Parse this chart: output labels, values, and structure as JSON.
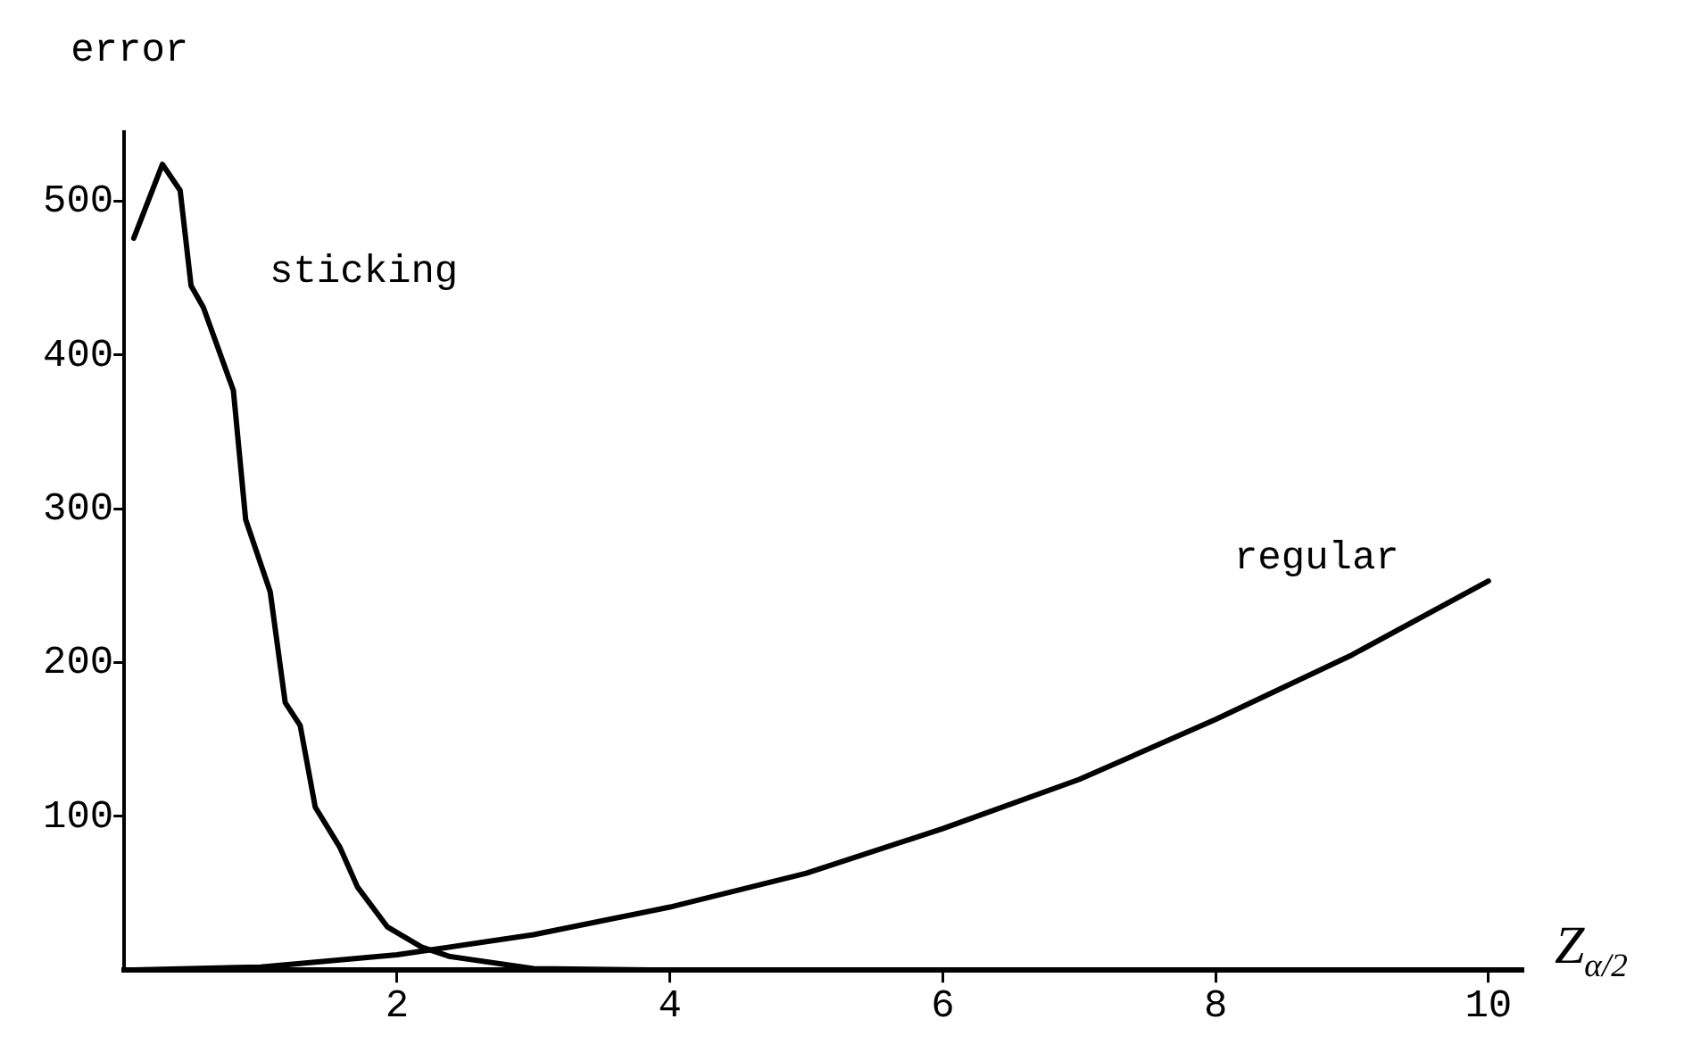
{
  "chart_data": {
    "type": "line",
    "ylabel": "error",
    "xlabel": "Z$_{α/2}$",
    "xlim": [
      0,
      10.25
    ],
    "ylim": [
      0,
      545
    ],
    "xticks": [
      2,
      4,
      6,
      8,
      10
    ],
    "yticks": [
      100,
      200,
      300,
      400,
      500
    ],
    "grid": false,
    "legend": false,
    "marker": "none",
    "line_style": "solid",
    "series": [
      {
        "name": "sticking",
        "color": "#000000",
        "x": [
          0.07,
          0.28,
          0.41,
          0.49,
          0.58,
          0.8,
          0.89,
          1.07,
          1.18,
          1.29,
          1.4,
          1.58,
          1.71,
          1.93,
          2.18,
          2.38,
          3,
          4
        ],
        "values": [
          476,
          524,
          507,
          445,
          431,
          377,
          293,
          246,
          174,
          159,
          106,
          80,
          54,
          28,
          15,
          9,
          1,
          0
        ]
      },
      {
        "name": "regular",
        "color": "#000000",
        "x": [
          0,
          1,
          2,
          3,
          4,
          5,
          6,
          7,
          8,
          9,
          10
        ],
        "values": [
          0,
          2,
          10,
          23,
          41,
          63,
          92,
          124,
          163,
          205,
          253
        ]
      }
    ]
  }
}
